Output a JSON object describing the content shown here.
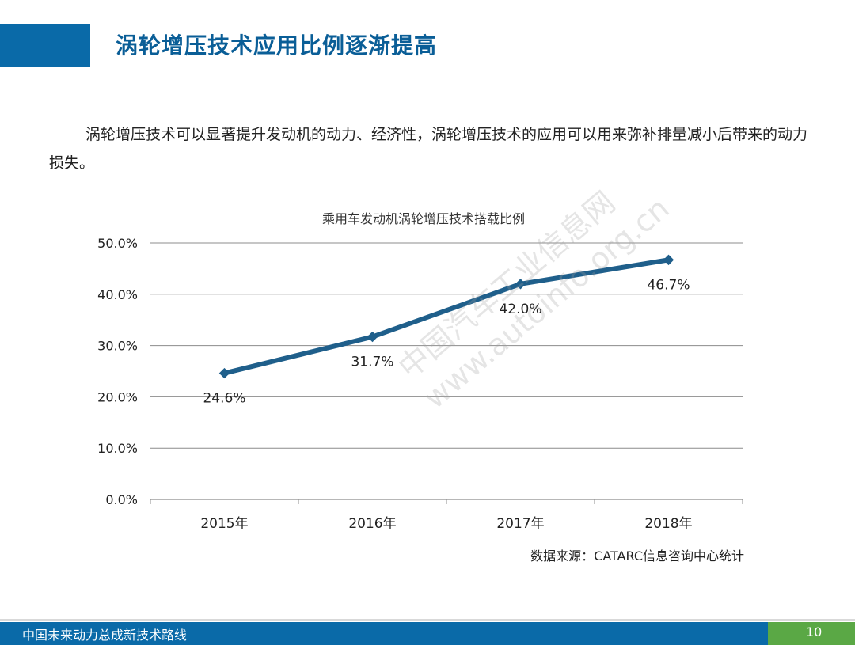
{
  "slide": {
    "title": "涡轮增压技术应用比例逐渐提高",
    "intro": "涡轮增压技术可以显著提升发动机的动力、经济性，涡轮增压技术的应用可以用来弥补排量减小后带来的动力损失。"
  },
  "chart_data": {
    "type": "line",
    "title": "乘用车发动机涡轮增压技术搭载比例",
    "categories": [
      "2015年",
      "2016年",
      "2017年",
      "2018年"
    ],
    "series": [
      {
        "values": [
          24.6,
          31.7,
          42.0,
          46.7
        ],
        "color": "#1f5f8b"
      }
    ],
    "data_labels": [
      "24.6%",
      "31.7%",
      "42.0%",
      "46.7%"
    ],
    "yticks": [
      "0.0%",
      "10.0%",
      "20.0%",
      "30.0%",
      "40.0%",
      "50.0%"
    ],
    "ylim": [
      0,
      50
    ],
    "grid": true,
    "marker": "diamond",
    "source": "数据来源：CATARC信息咨询中心统计"
  },
  "watermark": {
    "line1": "中国汽车工业信息网",
    "line2": "www.autoinfo.org.cn"
  },
  "footer": {
    "text": "中国未来动力总成新技术路线",
    "page": "10"
  }
}
